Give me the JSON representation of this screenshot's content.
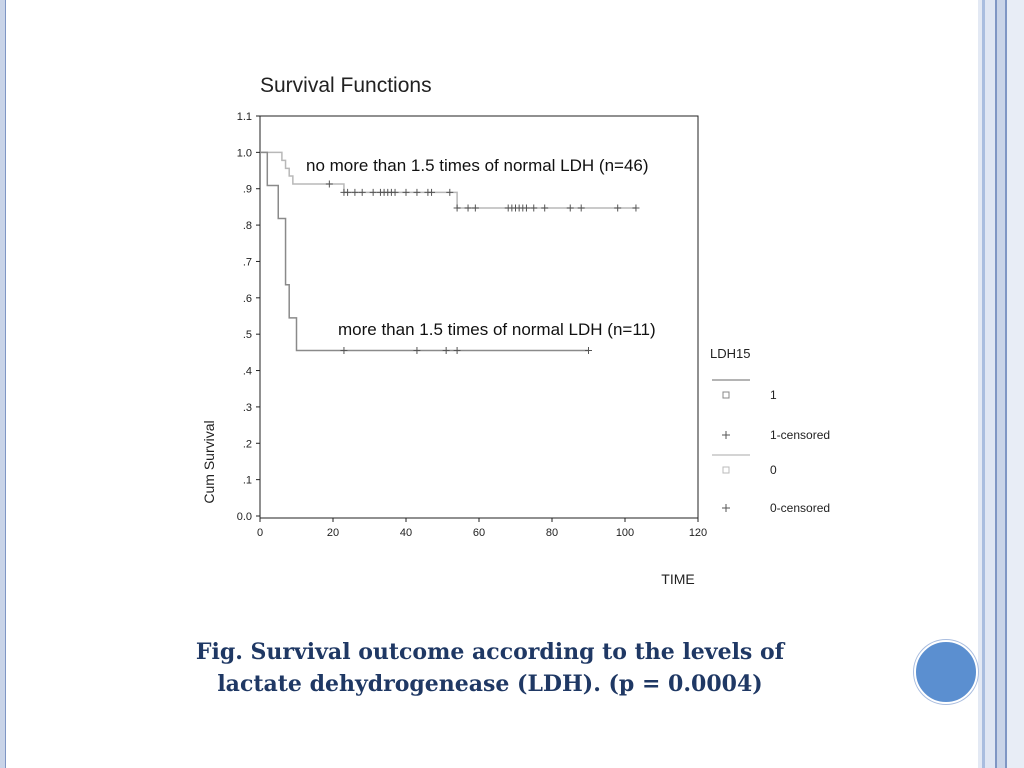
{
  "slide": {
    "caption_line1": "Fig. Survival outcome according to the levels of",
    "caption_line2": "lactate dehydrogenease (LDH). (p = 0.0004)",
    "accent_color": "#5b8fd0",
    "caption_color": "#1f3864"
  },
  "chart_data": {
    "type": "line",
    "title": "Survival Functions",
    "xlabel": "TIME",
    "ylabel": "Cum Survival",
    "xlim": [
      0,
      120
    ],
    "ylim": [
      0.0,
      1.1
    ],
    "x_ticks": [
      0,
      20,
      40,
      60,
      80,
      100,
      120
    ],
    "y_ticks": [
      {
        "v": 0.0,
        "label": "0.0"
      },
      {
        "v": 0.1,
        "label": ".1"
      },
      {
        "v": 0.2,
        "label": ".2"
      },
      {
        "v": 0.3,
        "label": ".3"
      },
      {
        "v": 0.4,
        "label": ".4"
      },
      {
        "v": 0.5,
        "label": ".5"
      },
      {
        "v": 0.6,
        "label": ".6"
      },
      {
        "v": 0.7,
        "label": ".7"
      },
      {
        "v": 0.8,
        "label": ".8"
      },
      {
        "v": 0.9,
        "label": ".9"
      },
      {
        "v": 1.0,
        "label": "1.0"
      },
      {
        "v": 1.1,
        "label": "1.1"
      }
    ],
    "legend_title": "LDH15",
    "legend_position": "right",
    "legend": [
      {
        "marker": "line",
        "label": ""
      },
      {
        "marker": "square",
        "label": "1"
      },
      {
        "marker": "plus",
        "label": "1-censored"
      },
      {
        "marker": "line-light",
        "label": ""
      },
      {
        "marker": "square-light",
        "label": "0"
      },
      {
        "marker": "plus-light",
        "label": "0-censored"
      }
    ],
    "series": [
      {
        "name": "0",
        "annotation": "no more than 1.5 times of normal LDH (n=46)",
        "color": "#b8b8b8",
        "steps": [
          [
            0,
            1.0
          ],
          [
            3,
            1.0
          ],
          [
            6,
            0.978
          ],
          [
            7,
            0.956
          ],
          [
            8,
            0.935
          ],
          [
            9,
            0.913
          ],
          [
            22,
            0.913
          ],
          [
            23,
            0.89
          ],
          [
            53,
            0.89
          ],
          [
            54,
            0.847
          ],
          [
            103,
            0.847
          ]
        ],
        "censored": [
          [
            19,
            0.913
          ],
          [
            23,
            0.89
          ],
          [
            24,
            0.89
          ],
          [
            26,
            0.89
          ],
          [
            28,
            0.89
          ],
          [
            31,
            0.89
          ],
          [
            33,
            0.89
          ],
          [
            34,
            0.89
          ],
          [
            35,
            0.89
          ],
          [
            36,
            0.89
          ],
          [
            37,
            0.89
          ],
          [
            40,
            0.89
          ],
          [
            43,
            0.89
          ],
          [
            46,
            0.89
          ],
          [
            47,
            0.89
          ],
          [
            52,
            0.89
          ],
          [
            54,
            0.847
          ],
          [
            57,
            0.847
          ],
          [
            59,
            0.847
          ],
          [
            68,
            0.847
          ],
          [
            69,
            0.847
          ],
          [
            70,
            0.847
          ],
          [
            71,
            0.847
          ],
          [
            72,
            0.847
          ],
          [
            73,
            0.847
          ],
          [
            75,
            0.847
          ],
          [
            78,
            0.847
          ],
          [
            85,
            0.847
          ],
          [
            88,
            0.847
          ],
          [
            98,
            0.847
          ],
          [
            103,
            0.847
          ]
        ]
      },
      {
        "name": "1",
        "annotation": "more than 1.5 times of normal LDH (n=11)",
        "color": "#8a8a8a",
        "steps": [
          [
            0,
            1.0
          ],
          [
            2,
            1.0
          ],
          [
            2,
            0.909
          ],
          [
            5,
            0.909
          ],
          [
            5,
            0.818
          ],
          [
            7,
            0.818
          ],
          [
            7,
            0.636
          ],
          [
            8,
            0.636
          ],
          [
            8,
            0.545
          ],
          [
            10,
            0.545
          ],
          [
            10,
            0.455
          ],
          [
            90,
            0.455
          ]
        ],
        "censored": [
          [
            23,
            0.455
          ],
          [
            43,
            0.455
          ],
          [
            51,
            0.455
          ],
          [
            54,
            0.455
          ],
          [
            90,
            0.455
          ]
        ]
      }
    ]
  }
}
